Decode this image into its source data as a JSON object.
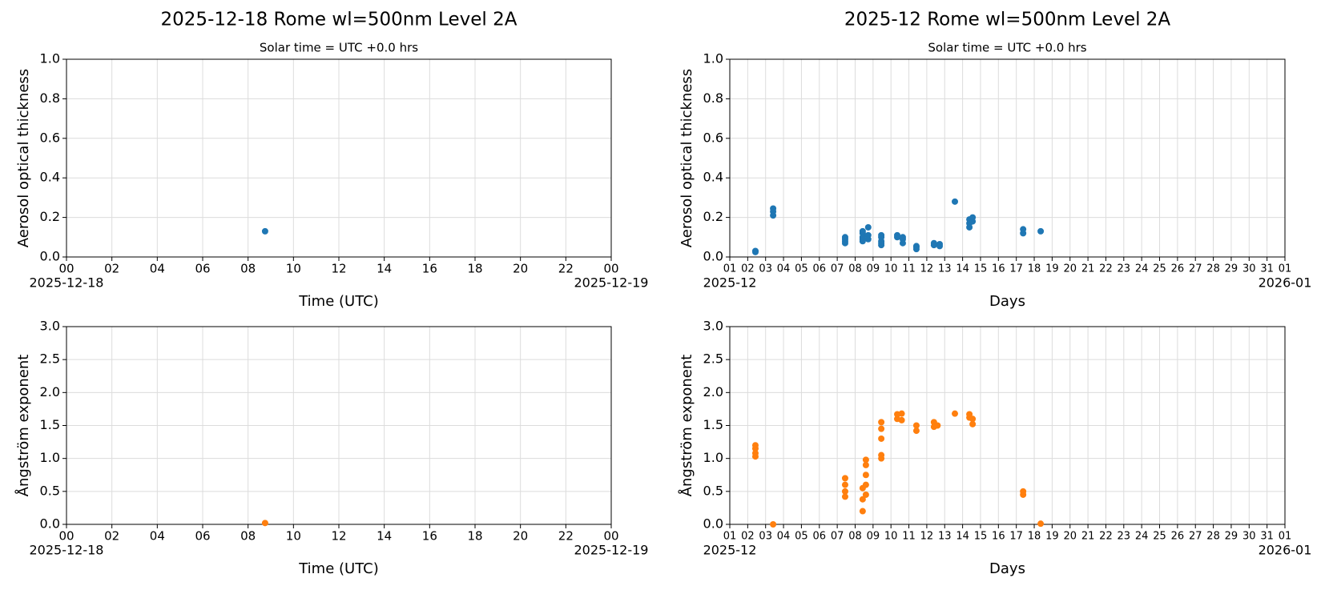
{
  "chart_data": [
    {
      "type": "scatter",
      "title": "2025-12-18  Rome  wl=500nm  Level 2A",
      "subtitle": "Solar time = UTC +0.0 hrs",
      "xlabel": "Time (UTC)",
      "ylabel": "Aerosol optical thickness",
      "x_date_labels": [
        "2025-12-18",
        "2025-12-19"
      ],
      "xlim": [
        0,
        24
      ],
      "ylim": [
        0,
        1
      ],
      "xticks": [
        {
          "value": 0,
          "label": "00"
        },
        {
          "value": 2,
          "label": "02"
        },
        {
          "value": 4,
          "label": "04"
        },
        {
          "value": 6,
          "label": "06"
        },
        {
          "value": 8,
          "label": "08"
        },
        10,
        12,
        14,
        16,
        18,
        20,
        22,
        {
          "value": 24,
          "label": "00"
        }
      ],
      "yticks": [
        {
          "value": 0,
          "label": "0.0"
        },
        0.2,
        0.4,
        0.6,
        0.8,
        {
          "value": 1,
          "label": "1.0"
        }
      ],
      "grid": true,
      "color": "#1f77b4",
      "x": [
        8.75
      ],
      "values": [
        0.13
      ]
    },
    {
      "type": "scatter",
      "title": "2025-12  Rome  wl=500nm  Level 2A",
      "subtitle": "Solar time = UTC +0.0 hrs",
      "xlabel": "Days",
      "ylabel": "Aerosol optical thickness",
      "x_date_labels": [
        "2025-12",
        "2026-01"
      ],
      "xlim": [
        1,
        32
      ],
      "ylim": [
        0,
        1
      ],
      "xticks": [
        {
          "value": 1,
          "label": "01"
        },
        {
          "value": 2,
          "label": "02"
        },
        {
          "value": 3,
          "label": "03"
        },
        {
          "value": 4,
          "label": "04"
        },
        {
          "value": 5,
          "label": "05"
        },
        {
          "value": 6,
          "label": "06"
        },
        {
          "value": 7,
          "label": "07"
        },
        {
          "value": 8,
          "label": "08"
        },
        {
          "value": 9,
          "label": "09"
        },
        10,
        11,
        12,
        13,
        14,
        15,
        16,
        17,
        18,
        19,
        20,
        21,
        22,
        23,
        24,
        25,
        26,
        27,
        28,
        29,
        30,
        31,
        {
          "value": 32,
          "label": "01"
        }
      ],
      "yticks": [
        {
          "value": 0,
          "label": "0.0"
        },
        0.2,
        0.4,
        0.6,
        0.8,
        {
          "value": 1,
          "label": "1.0"
        }
      ],
      "grid": true,
      "color": "#1f77b4",
      "x": [
        2.43,
        2.43,
        2.43,
        3.42,
        3.42,
        3.42,
        7.44,
        7.44,
        7.44,
        7.44,
        8.42,
        8.42,
        8.42,
        8.42,
        8.42,
        8.73,
        8.73,
        8.73,
        9.46,
        9.46,
        9.46,
        9.46,
        9.46,
        10.35,
        10.35,
        10.66,
        10.66,
        10.66,
        11.42,
        11.42,
        11.42,
        12.4,
        12.4,
        12.72,
        12.72,
        13.57,
        14.38,
        14.38,
        14.38,
        14.56,
        14.56,
        17.38,
        17.38,
        18.36
      ],
      "values": [
        0.03,
        0.025,
        0.03,
        0.21,
        0.23,
        0.245,
        0.07,
        0.08,
        0.09,
        0.1,
        0.08,
        0.09,
        0.1,
        0.12,
        0.13,
        0.11,
        0.15,
        0.09,
        0.06,
        0.07,
        0.08,
        0.1,
        0.11,
        0.1,
        0.11,
        0.07,
        0.09,
        0.1,
        0.04,
        0.05,
        0.055,
        0.06,
        0.07,
        0.055,
        0.065,
        0.28,
        0.15,
        0.17,
        0.19,
        0.18,
        0.2,
        0.12,
        0.14,
        0.13
      ]
    },
    {
      "type": "scatter",
      "xlabel": "Time (UTC)",
      "ylabel": "Ångström exponent",
      "x_date_labels": [
        "2025-12-18",
        "2025-12-19"
      ],
      "xlim": [
        0,
        24
      ],
      "ylim": [
        0,
        3
      ],
      "xticks": [
        {
          "value": 0,
          "label": "00"
        },
        {
          "value": 2,
          "label": "02"
        },
        {
          "value": 4,
          "label": "04"
        },
        {
          "value": 6,
          "label": "06"
        },
        {
          "value": 8,
          "label": "08"
        },
        10,
        12,
        14,
        16,
        18,
        20,
        22,
        {
          "value": 24,
          "label": "00"
        }
      ],
      "yticks": [
        {
          "value": 0,
          "label": "0.0"
        },
        0.5,
        {
          "value": 1,
          "label": "1.0"
        },
        1.5,
        {
          "value": 2,
          "label": "2.0"
        },
        2.5,
        {
          "value": 3,
          "label": "3.0"
        }
      ],
      "grid": true,
      "color": "#ff7f0e",
      "x": [
        8.75
      ],
      "values": [
        0.02
      ]
    },
    {
      "type": "scatter",
      "xlabel": "Days",
      "ylabel": "Ångström exponent",
      "x_date_labels": [
        "2025-12",
        "2026-01"
      ],
      "xlim": [
        1,
        32
      ],
      "ylim": [
        0,
        3
      ],
      "xticks": [
        {
          "value": 1,
          "label": "01"
        },
        {
          "value": 2,
          "label": "02"
        },
        {
          "value": 3,
          "label": "03"
        },
        {
          "value": 4,
          "label": "04"
        },
        {
          "value": 5,
          "label": "05"
        },
        {
          "value": 6,
          "label": "06"
        },
        {
          "value": 7,
          "label": "07"
        },
        {
          "value": 8,
          "label": "08"
        },
        {
          "value": 9,
          "label": "09"
        },
        10,
        11,
        12,
        13,
        14,
        15,
        16,
        17,
        18,
        19,
        20,
        21,
        22,
        23,
        24,
        25,
        26,
        27,
        28,
        29,
        30,
        31,
        {
          "value": 32,
          "label": "01"
        }
      ],
      "yticks": [
        {
          "value": 0,
          "label": "0.0"
        },
        0.5,
        {
          "value": 1,
          "label": "1.0"
        },
        1.5,
        {
          "value": 2,
          "label": "2.0"
        },
        2.5,
        {
          "value": 3,
          "label": "3.0"
        }
      ],
      "grid": true,
      "color": "#ff7f0e",
      "x": [
        2.43,
        2.43,
        2.43,
        2.43,
        3.42,
        7.44,
        7.44,
        7.44,
        7.44,
        8.42,
        8.42,
        8.42,
        8.6,
        8.6,
        8.6,
        8.6,
        8.6,
        9.46,
        9.46,
        9.46,
        9.46,
        9.46,
        10.35,
        10.35,
        10.6,
        10.6,
        11.42,
        11.42,
        12.4,
        12.4,
        12.6,
        13.57,
        14.38,
        14.38,
        14.56,
        14.56,
        17.38,
        17.38,
        18.36
      ],
      "values": [
        1.03,
        1.08,
        1.15,
        1.2,
        0.0,
        0.42,
        0.5,
        0.6,
        0.7,
        0.2,
        0.38,
        0.55,
        0.45,
        0.6,
        0.75,
        0.9,
        0.98,
        1.0,
        1.05,
        1.3,
        1.45,
        1.55,
        1.6,
        1.67,
        1.58,
        1.68,
        1.42,
        1.5,
        1.48,
        1.55,
        1.5,
        1.68,
        1.62,
        1.67,
        1.52,
        1.6,
        0.45,
        0.5,
        0.01
      ]
    }
  ]
}
